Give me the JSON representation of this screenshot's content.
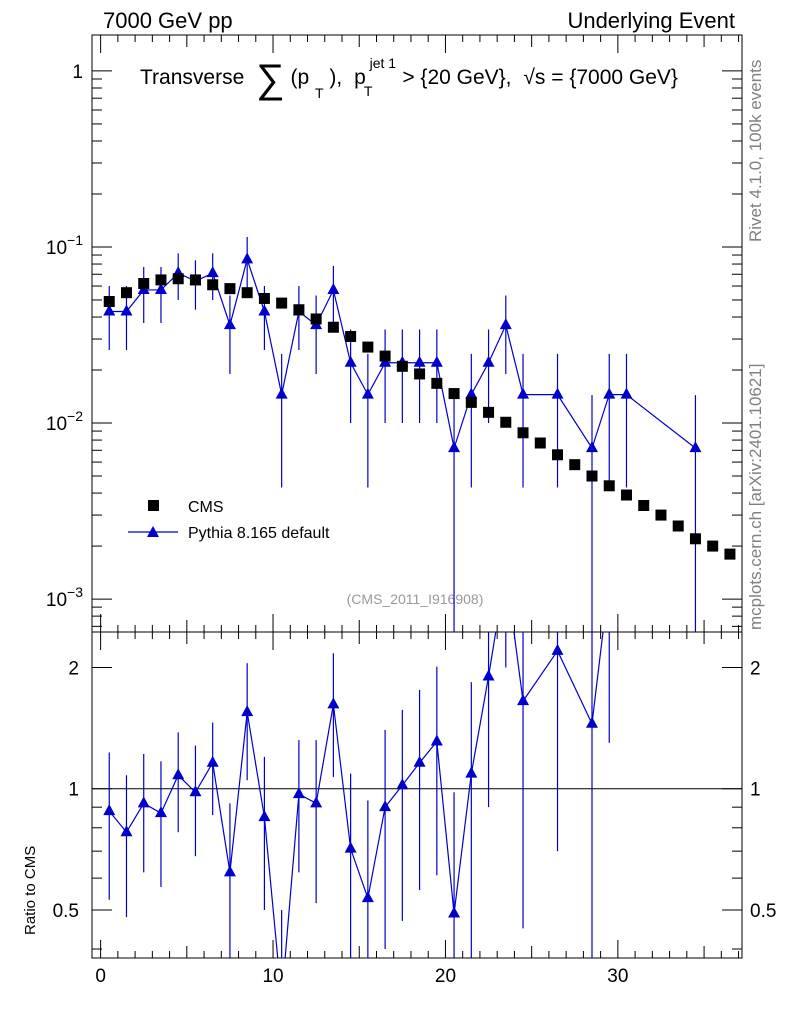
{
  "header": {
    "left": "7000 GeV pp",
    "right": "Underlying Event"
  },
  "side_labels": {
    "rivet": "Rivet 4.1.0,  100k events",
    "mcplots": "mcplots.cern.ch [arXiv:2401.10621]"
  },
  "colors": {
    "cms": "#000000",
    "pythia": "#0000cc",
    "analysis_id": "#999999"
  },
  "chart_data": [
    {
      "type": "scatter",
      "panel": "main",
      "title": "Transverse ∑(p_T), p_T^jet 1 > {20 GeV}, √s = {7000 GeV}",
      "title_parts": {
        "word": "Transverse",
        "sum": "∑",
        "pt_open": "(p",
        "pt_sub": "T",
        "pt_close": "),",
        "pjet": "p",
        "pjet_sup": "jet 1",
        "pjet_sub": "T",
        "cut": "> {20 GeV},",
        "sqrt": "√s = {7000 GeV}"
      },
      "analysis_id": "(CMS_2011_I916908)",
      "yscale": "log",
      "ylim": [
        0.00065,
        1.6
      ],
      "yticks": [
        {
          "value": 1,
          "label": "1"
        },
        {
          "value": 0.1,
          "label": "10^-1",
          "base": "10",
          "exp": "−1"
        },
        {
          "value": 0.01,
          "label": "10^-2",
          "base": "10",
          "exp": "−2"
        },
        {
          "value": 0.001,
          "label": "10^-3",
          "base": "10",
          "exp": "−3"
        }
      ],
      "xlim": [
        -0.5,
        37.2
      ],
      "legend_position": "lower-left",
      "series": [
        {
          "name": "CMS",
          "marker": "square",
          "x": [
            0.5,
            1.5,
            2.5,
            3.5,
            4.5,
            5.5,
            6.5,
            7.5,
            8.5,
            9.5,
            10.5,
            11.5,
            12.5,
            13.5,
            14.5,
            15.5,
            16.5,
            17.5,
            18.5,
            19.5,
            20.5,
            21.5,
            22.5,
            23.5,
            24.5,
            25.5,
            26.5,
            27.5,
            28.5,
            29.5,
            30.5,
            31.5,
            32.5,
            33.5,
            34.5,
            35.5,
            36.5
          ],
          "y": [
            0.049,
            0.055,
            0.062,
            0.065,
            0.066,
            0.065,
            0.061,
            0.058,
            0.055,
            0.051,
            0.048,
            0.044,
            0.039,
            0.035,
            0.031,
            0.027,
            0.024,
            0.021,
            0.019,
            0.0168,
            0.0147,
            0.0131,
            0.0115,
            0.0101,
            0.0088,
            0.0077,
            0.0066,
            0.0058,
            0.005,
            0.0044,
            0.0039,
            0.0034,
            0.003,
            0.0026,
            0.0022,
            0.002,
            0.0018
          ]
        },
        {
          "name": "Pythia 8.165 default",
          "marker": "triangle",
          "x": [
            0.5,
            1.5,
            2.5,
            3.5,
            4.5,
            5.5,
            6.5,
            7.5,
            8.5,
            9.5,
            10.5,
            11.5,
            12.5,
            13.5,
            14.5,
            15.5,
            16.5,
            17.5,
            18.5,
            19.5,
            20.5,
            21.5,
            22.5,
            23.5,
            24.5,
            26.5,
            28.5,
            29.5,
            30.5,
            34.5
          ],
          "y": [
            0.043,
            0.043,
            0.057,
            0.057,
            0.071,
            0.064,
            0.071,
            0.036,
            0.085,
            0.043,
            0.0145,
            0.043,
            0.036,
            0.057,
            0.022,
            0.0145,
            0.022,
            0.022,
            0.022,
            0.022,
            0.0072,
            0.0145,
            0.022,
            0.036,
            0.0145,
            0.0145,
            0.0072,
            0.0145,
            0.0145,
            0.0072
          ],
          "yerr_low": [
            0.017,
            0.017,
            0.02,
            0.02,
            0.021,
            0.02,
            0.021,
            0.017,
            0.029,
            0.017,
            0.0102,
            0.017,
            0.017,
            0.021,
            0.012,
            0.0102,
            0.012,
            0.012,
            0.012,
            0.012,
            0.0072,
            0.0102,
            0.012,
            0.017,
            0.0102,
            0.0102,
            0.0072,
            0.0102,
            0.0102,
            0.0072
          ],
          "yerr_high": [
            0.017,
            0.017,
            0.02,
            0.02,
            0.021,
            0.02,
            0.021,
            0.017,
            0.029,
            0.017,
            0.0102,
            0.017,
            0.017,
            0.021,
            0.012,
            0.0102,
            0.012,
            0.012,
            0.012,
            0.012,
            0.0072,
            0.0102,
            0.012,
            0.017,
            0.0102,
            0.0102,
            0.0072,
            0.0102,
            0.0102,
            0.0072
          ]
        }
      ]
    },
    {
      "type": "line",
      "panel": "ratio",
      "ylabel": "Ratio to CMS",
      "yscale": "log",
      "ylim": [
        0.38,
        2.45
      ],
      "yticks": [
        {
          "value": 2,
          "label": "2"
        },
        {
          "value": 1,
          "label": "1"
        },
        {
          "value": 0.5,
          "label": "0.5"
        }
      ],
      "xlim": [
        -0.5,
        37.2
      ],
      "xticks": [
        {
          "value": 0,
          "label": "0"
        },
        {
          "value": 10,
          "label": "10"
        },
        {
          "value": 20,
          "label": "20"
        },
        {
          "value": 30,
          "label": "30"
        }
      ],
      "reference_line": 1,
      "series": [
        {
          "name": "Pythia 8.165 default / CMS",
          "x": [
            0.5,
            1.5,
            2.5,
            3.5,
            4.5,
            5.5,
            6.5,
            7.5,
            8.5,
            9.5,
            10.5,
            11.5,
            12.5,
            13.5,
            14.5,
            15.5,
            16.5,
            17.5,
            18.5,
            19.5,
            20.5,
            21.5,
            22.5,
            23.5,
            24.5,
            26.5,
            28.5,
            29.5
          ],
          "y": [
            0.88,
            0.78,
            0.92,
            0.87,
            1.08,
            0.98,
            1.16,
            0.62,
            1.55,
            0.85,
            0.3,
            0.97,
            0.92,
            1.62,
            0.71,
            0.535,
            0.9,
            1.02,
            1.16,
            1.31,
            0.49,
            1.09,
            1.9,
            3.5,
            1.65,
            2.2,
            1.45,
            3.3
          ],
          "yerr_low": [
            0.35,
            0.3,
            0.3,
            0.3,
            0.3,
            0.3,
            0.3,
            0.3,
            0.5,
            0.35,
            0.2,
            0.35,
            0.4,
            0.55,
            0.38,
            0.4,
            0.5,
            0.55,
            0.6,
            0.7,
            0.49,
            0.75,
            1.0,
            1.5,
            1.2,
            1.5,
            1.45,
            2.0
          ],
          "yerr_high": [
            0.35,
            0.3,
            0.3,
            0.3,
            0.3,
            0.3,
            0.3,
            0.3,
            0.5,
            0.35,
            0.2,
            0.35,
            0.4,
            0.55,
            0.38,
            0.4,
            0.5,
            0.55,
            0.6,
            0.7,
            0.49,
            0.75,
            1.0,
            1.5,
            1.2,
            1.5,
            1.45,
            2.0
          ]
        }
      ]
    }
  ]
}
